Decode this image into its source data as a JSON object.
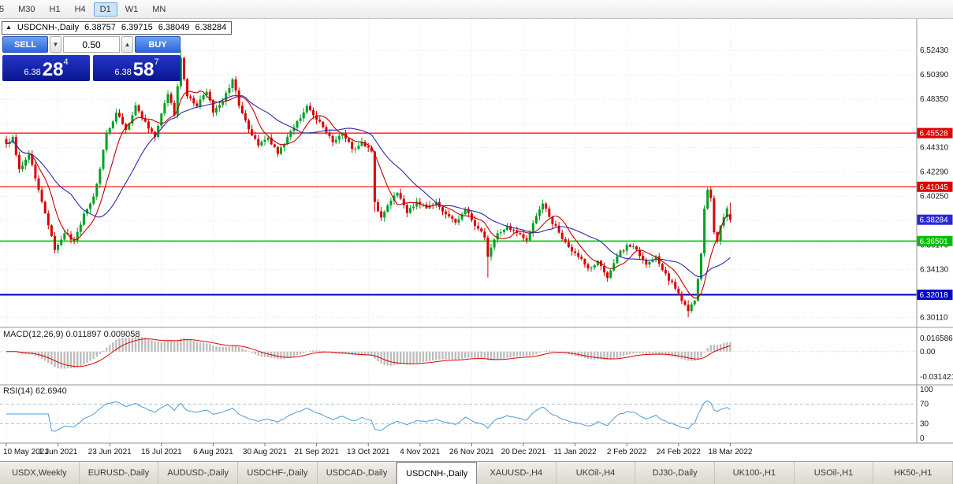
{
  "toolbar": {
    "timeframes": [
      {
        "label": "5",
        "active": false
      },
      {
        "label": "M30",
        "active": false
      },
      {
        "label": "H1",
        "active": false
      },
      {
        "label": "H4",
        "active": false
      },
      {
        "label": "D1",
        "active": true
      },
      {
        "label": "W1",
        "active": false
      },
      {
        "label": "MN",
        "active": false
      }
    ]
  },
  "chart_header": {
    "expander": "▲",
    "symbol": "USDCNH-,Daily",
    "open": "6.38757",
    "high": "6.39715",
    "low": "6.38049",
    "close": "6.38284"
  },
  "one_click": {
    "sell_label": "SELL",
    "buy_label": "BUY",
    "volume": "0.50",
    "vol_down_icon": "▼",
    "vol_up_icon": "▲",
    "bid": {
      "base": "6.38",
      "big": "28",
      "sup": "4"
    },
    "ask": {
      "base": "6.38",
      "big": "58",
      "sup": "7"
    }
  },
  "macd_label": "MACD(12,26,9) 0.011897 0.009058",
  "rsi_label": "RSI(14) 62.6940",
  "tabs": [
    {
      "label": "USDX,Weekly",
      "active": false
    },
    {
      "label": "EURUSD-,Daily",
      "active": false
    },
    {
      "label": "AUDUSD-,Daily",
      "active": false
    },
    {
      "label": "USDCHF-,Daily",
      "active": false
    },
    {
      "label": "USDCAD-,Daily",
      "active": false
    },
    {
      "label": "USDCNH-,Daily",
      "active": true
    },
    {
      "label": "XAUUSD-,H4",
      "active": false
    },
    {
      "label": "UKOil-,H4",
      "active": false
    },
    {
      "label": "DJ30-,Daily",
      "active": false
    },
    {
      "label": "UK100-,H1",
      "active": false
    },
    {
      "label": "USOil-,H1",
      "active": false
    },
    {
      "label": "HK50-,H1",
      "active": false
    }
  ],
  "chart_data": {
    "type": "candlestick",
    "symbol": "USDCNH-",
    "timeframe": "Daily",
    "last_candle": {
      "open": 6.38757,
      "high": 6.39715,
      "low": 6.38049,
      "close": 6.38284
    },
    "current_price": 6.38284,
    "num_candles": 225,
    "ylim": [
      6.2955,
      6.5455
    ],
    "up_color": "#00A024",
    "down_color": "#D90000",
    "x_dates": [
      "10 May 2021",
      "1 Jun 2021",
      "23 Jun 2021",
      "15 Jul 2021",
      "6 Aug 2021",
      "30 Aug 2021",
      "21 Sep 2021",
      "13 Oct 2021",
      "4 Nov 2021",
      "26 Nov 2021",
      "20 Dec 2021",
      "11 Jan 2022",
      "2 Feb 2022",
      "24 Feb 2022",
      "18 Mar 2022"
    ],
    "price_anchors": [
      [
        0,
        6.446
      ],
      [
        2,
        6.452
      ],
      [
        4,
        6.425
      ],
      [
        7,
        6.437
      ],
      [
        10,
        6.408
      ],
      [
        13,
        6.378
      ],
      [
        15,
        6.358
      ],
      [
        18,
        6.372
      ],
      [
        21,
        6.365
      ],
      [
        24,
        6.388
      ],
      [
        27,
        6.402
      ],
      [
        29,
        6.425
      ],
      [
        31,
        6.455
      ],
      [
        34,
        6.472
      ],
      [
        37,
        6.458
      ],
      [
        40,
        6.478
      ],
      [
        43,
        6.465
      ],
      [
        46,
        6.452
      ],
      [
        48,
        6.472
      ],
      [
        50,
        6.488
      ],
      [
        52,
        6.47
      ],
      [
        54,
        6.518
      ],
      [
        56,
        6.486
      ],
      [
        59,
        6.478
      ],
      [
        62,
        6.49
      ],
      [
        64,
        6.472
      ],
      [
        67,
        6.482
      ],
      [
        70,
        6.5
      ],
      [
        72,
        6.478
      ],
      [
        75,
        6.458
      ],
      [
        78,
        6.445
      ],
      [
        81,
        6.452
      ],
      [
        84,
        6.438
      ],
      [
        87,
        6.452
      ],
      [
        90,
        6.465
      ],
      [
        93,
        6.478
      ],
      [
        95,
        6.47
      ],
      [
        98,
        6.46
      ],
      [
        101,
        6.448
      ],
      [
        104,
        6.455
      ],
      [
        107,
        6.442
      ],
      [
        110,
        6.448
      ],
      [
        112,
        6.443
      ],
      [
        113,
        6.44
      ],
      [
        114,
        6.398
      ],
      [
        116,
        6.385
      ],
      [
        118,
        6.395
      ],
      [
        121,
        6.405
      ],
      [
        124,
        6.388
      ],
      [
        127,
        6.398
      ],
      [
        130,
        6.392
      ],
      [
        133,
        6.398
      ],
      [
        136,
        6.388
      ],
      [
        139,
        6.38
      ],
      [
        142,
        6.392
      ],
      [
        145,
        6.378
      ],
      [
        148,
        6.368
      ],
      [
        149,
        6.352
      ],
      [
        152,
        6.372
      ],
      [
        155,
        6.378
      ],
      [
        158,
        6.372
      ],
      [
        161,
        6.366
      ],
      [
        163,
        6.38
      ],
      [
        166,
        6.396
      ],
      [
        168,
        6.385
      ],
      [
        171,
        6.372
      ],
      [
        174,
        6.36
      ],
      [
        177,
        6.352
      ],
      [
        180,
        6.342
      ],
      [
        183,
        6.348
      ],
      [
        186,
        6.334
      ],
      [
        189,
        6.352
      ],
      [
        192,
        6.362
      ],
      [
        195,
        6.358
      ],
      [
        198,
        6.345
      ],
      [
        201,
        6.352
      ],
      [
        204,
        6.338
      ],
      [
        207,
        6.325
      ],
      [
        210,
        6.312
      ],
      [
        211,
        6.306
      ],
      [
        213,
        6.315
      ],
      [
        215,
        6.355
      ],
      [
        216,
        6.392
      ],
      [
        217,
        6.408
      ],
      [
        218,
        6.401
      ],
      [
        219,
        6.372
      ],
      [
        220,
        6.365
      ],
      [
        221,
        6.378
      ],
      [
        222,
        6.385
      ],
      [
        223,
        6.392
      ],
      [
        224,
        6.38284
      ]
    ],
    "spikes": [
      {
        "i": 54,
        "high": 6.5243
      },
      {
        "i": 114,
        "low": 6.3895
      },
      {
        "i": 149,
        "low": 6.3345
      },
      {
        "i": 211,
        "low": 6.3015
      },
      {
        "i": 218,
        "high": 6.4106
      }
    ],
    "price_ticks": [
      {
        "p": 6.5243,
        "label": "6.52430"
      },
      {
        "p": 6.5039,
        "label": "6.50390"
      },
      {
        "p": 6.4835,
        "label": "6.48350"
      },
      {
        "p": 6.4631,
        "label": ""
      },
      {
        "p": 6.4431,
        "label": "6.44310"
      },
      {
        "p": 6.4229,
        "label": "6.42290"
      },
      {
        "p": 6.4025,
        "label": "6.40250"
      },
      {
        "p": 6.3821,
        "label": ""
      },
      {
        "p": 6.3617,
        "label": "6.36170"
      },
      {
        "p": 6.3413,
        "label": "6.34130"
      },
      {
        "p": 6.3209,
        "label": ""
      },
      {
        "p": 6.3011,
        "label": "6.30110"
      }
    ],
    "axis_boxes": [
      {
        "price": 6.45528,
        "label": "6.45528",
        "color": "#DF0000"
      },
      {
        "price": 6.41045,
        "label": "6.41045",
        "color": "#DF0000"
      },
      {
        "price": 6.38284,
        "label": "6.38284",
        "color": "#2828D8"
      },
      {
        "price": 6.36501,
        "label": "6.36501",
        "color": "#00C000"
      },
      {
        "price": 6.32018,
        "label": "6.32018",
        "color": "#0000C8"
      }
    ],
    "horizontal_lines": [
      {
        "price": 6.45528,
        "color": "#FF0000",
        "width": 1.2
      },
      {
        "price": 6.41045,
        "color": "#FF0000",
        "width": 1.2
      },
      {
        "price": 6.36501,
        "color": "#00D200",
        "width": 1.6
      },
      {
        "price": 6.32018,
        "color": "#0000CD",
        "width": 2
      }
    ],
    "moving_averages": [
      {
        "period": 8,
        "color": "#C00000"
      },
      {
        "period": 21,
        "color": "#2A2AB0"
      }
    ],
    "macd": {
      "params": [
        12,
        26,
        9
      ],
      "main": 0.011897,
      "signal": 0.009058,
      "bar_color": "#BDBDBD",
      "signal_color": "#E00000",
      "axis": [
        {
          "v": 0.016586,
          "label": "0.016586"
        },
        {
          "v": 0,
          "label": "0.00"
        },
        {
          "v": -0.031421,
          "label": "-0.031421"
        }
      ]
    },
    "rsi": {
      "period": 14,
      "value": 62.694,
      "line_color": "#4F9CD6",
      "levels": [
        70,
        30
      ],
      "axis": [
        {
          "v": 100,
          "label": "100"
        },
        {
          "v": 70,
          "label": "70"
        },
        {
          "v": 30,
          "label": "30"
        },
        {
          "v": 0,
          "label": "0"
        }
      ]
    }
  }
}
